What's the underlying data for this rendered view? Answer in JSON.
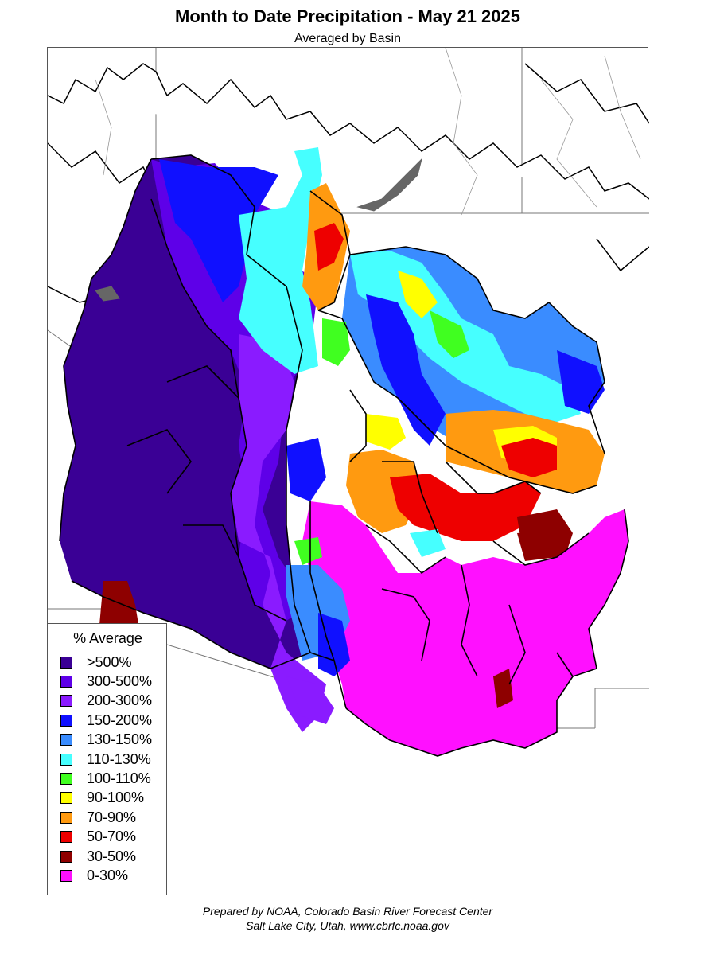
{
  "title": "Month to Date Precipitation - May 21 2025",
  "subtitle": "Averaged by Basin",
  "legend": {
    "title": "% Average",
    "items": [
      {
        "label": ">500%",
        "color": "#3a0095"
      },
      {
        "label": "300-500%",
        "color": "#5e00e8"
      },
      {
        "label": "200-300%",
        "color": "#8a1bff"
      },
      {
        "label": "150-200%",
        "color": "#1010ff"
      },
      {
        "label": "130-150%",
        "color": "#3a8cff"
      },
      {
        "label": "110-130%",
        "color": "#46ffff"
      },
      {
        "label": "100-110%",
        "color": "#40ff20"
      },
      {
        "label": "90-100%",
        "color": "#ffff00"
      },
      {
        "label": "70-90%",
        "color": "#ff9a10"
      },
      {
        "label": "50-70%",
        "color": "#ee0000"
      },
      {
        "label": "30-50%",
        "color": "#8e0000"
      },
      {
        "label": "0-30%",
        "color": "#ff10ff"
      }
    ]
  },
  "credit": {
    "line1": "Prepared by NOAA, Colorado Basin River Forecast Center",
    "line2": "Salt Lake City, Utah, www.cbrfc.noaa.gov"
  }
}
